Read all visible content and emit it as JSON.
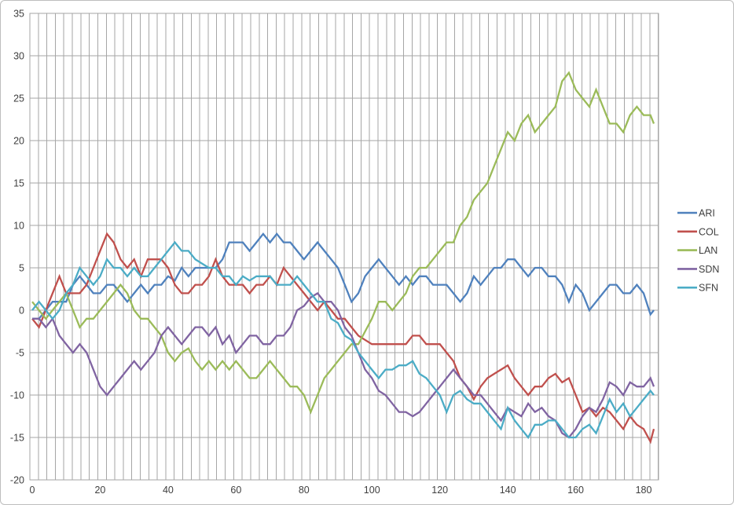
{
  "chart_data": {
    "type": "line",
    "title": "",
    "xlabel": "",
    "ylabel": "",
    "xlim": [
      0,
      184
    ],
    "ylim": [
      -20,
      35
    ],
    "xticks": [
      0,
      20,
      40,
      60,
      80,
      100,
      120,
      140,
      160,
      180
    ],
    "yticks": [
      35,
      30,
      25,
      20,
      15,
      10,
      5,
      0,
      -5,
      -10,
      -15,
      -20
    ],
    "grid": "on",
    "x_gridline_step": 2.5,
    "y_gridline_step": 5,
    "legend_position": "right",
    "axis_color": "#a6a6a6",
    "label_color": "#3f3f3f",
    "x": [
      0,
      2,
      4,
      6,
      8,
      10,
      12,
      14,
      16,
      18,
      20,
      22,
      24,
      26,
      28,
      30,
      32,
      34,
      36,
      38,
      40,
      42,
      44,
      46,
      48,
      50,
      52,
      54,
      56,
      58,
      60,
      62,
      64,
      66,
      68,
      70,
      72,
      74,
      76,
      78,
      80,
      82,
      84,
      86,
      88,
      90,
      92,
      94,
      96,
      98,
      100,
      102,
      104,
      106,
      108,
      110,
      112,
      114,
      116,
      118,
      120,
      122,
      124,
      126,
      128,
      130,
      132,
      134,
      136,
      138,
      140,
      142,
      144,
      146,
      148,
      150,
      152,
      154,
      156,
      158,
      160,
      162,
      164,
      166,
      168,
      170,
      172,
      174,
      176,
      178,
      180,
      182,
      183
    ],
    "series": [
      {
        "name": "ARI",
        "color": "#4F81BD",
        "values": [
          -1,
          -1,
          0,
          1,
          1,
          1,
          3,
          4,
          3,
          2,
          2,
          3,
          3,
          2,
          1,
          2,
          3,
          2,
          3,
          3,
          4,
          3.5,
          5,
          4,
          5,
          5,
          5,
          5,
          6,
          8,
          8,
          8,
          7,
          8,
          9,
          8,
          9,
          8,
          8,
          7,
          6,
          7,
          8,
          7,
          6,
          5,
          3,
          1,
          2,
          4,
          5,
          6,
          5,
          4,
          3,
          4,
          3,
          4,
          4,
          3,
          3,
          3,
          2,
          1,
          2,
          4,
          3,
          4,
          5,
          5,
          6,
          6,
          5,
          4,
          5,
          5,
          4,
          4,
          3,
          1,
          3,
          2,
          0,
          1,
          2,
          3,
          3,
          2,
          2,
          3,
          2,
          -0.5,
          0
        ]
      },
      {
        "name": "COL",
        "color": "#C0504D",
        "values": [
          -1,
          -2,
          0,
          2,
          4,
          2,
          2,
          2,
          3,
          5,
          7,
          9,
          8,
          6,
          5,
          6,
          4,
          6,
          6,
          6,
          5,
          3,
          2,
          2,
          3,
          3,
          4,
          6,
          4,
          3,
          3,
          3,
          2,
          3,
          3,
          4,
          3,
          5,
          4,
          3,
          2,
          1,
          0,
          1,
          0,
          -1,
          -1,
          -2,
          -3,
          -3.5,
          -4,
          -4,
          -4,
          -4,
          -4,
          -4,
          -3,
          -3,
          -4,
          -4,
          -4,
          -5,
          -6,
          -8,
          -9,
          -10.5,
          -9,
          -8,
          -7.5,
          -7,
          -6.5,
          -8,
          -9,
          -10,
          -9,
          -9,
          -8,
          -7.5,
          -8.5,
          -8,
          -10,
          -12,
          -11.5,
          -12.5,
          -11.5,
          -12,
          -13,
          -14,
          -12.5,
          -13.5,
          -14,
          -15.5,
          -14
        ]
      },
      {
        "name": "LAN",
        "color": "#9BBB59",
        "values": [
          1,
          0,
          -1,
          0,
          1,
          2,
          0,
          -2,
          -1,
          -1,
          0,
          1,
          2,
          3,
          2,
          0,
          -1,
          -1,
          -2,
          -3,
          -5,
          -6,
          -5,
          -4.5,
          -6,
          -7,
          -6,
          -7,
          -6,
          -7,
          -6,
          -7,
          -8,
          -8,
          -7,
          -6,
          -7,
          -8,
          -9,
          -9,
          -10,
          -12,
          -10,
          -8,
          -7,
          -6,
          -5,
          -4,
          -4,
          -2.5,
          -1,
          1,
          1,
          0,
          1,
          2,
          4,
          5,
          5,
          6,
          7,
          8,
          8,
          10,
          11,
          13,
          14,
          15,
          17,
          19,
          21,
          20,
          22,
          23,
          21,
          22,
          23,
          24,
          27,
          28,
          26,
          25,
          24,
          26,
          24,
          22,
          22,
          21,
          23,
          24,
          23,
          23,
          22
        ]
      },
      {
        "name": "SDN",
        "color": "#8064A2",
        "values": [
          -1,
          -1,
          -2,
          -1,
          -3,
          -4,
          -5,
          -4,
          -5,
          -7,
          -9,
          -10,
          -9,
          -8,
          -7,
          -6,
          -7,
          -6,
          -5,
          -3,
          -2,
          -3,
          -4,
          -3,
          -2,
          -2,
          -3,
          -2,
          -4,
          -3,
          -5,
          -4,
          -3,
          -3,
          -4,
          -4,
          -3,
          -3,
          -2,
          0,
          0.5,
          1.5,
          2,
          1,
          1,
          0,
          -2,
          -3,
          -5,
          -7,
          -8,
          -9.5,
          -10,
          -11,
          -12,
          -12,
          -12.5,
          -12,
          -11,
          -10,
          -9,
          -8,
          -7,
          -8,
          -9,
          -10,
          -10,
          -11,
          -12,
          -13,
          -11.5,
          -12,
          -12.5,
          -11,
          -12,
          -11.5,
          -12.5,
          -13,
          -14.5,
          -15,
          -14,
          -12.5,
          -11.5,
          -12,
          -10.5,
          -8.5,
          -9,
          -10,
          -8.5,
          -9,
          -9,
          -8,
          -9
        ]
      },
      {
        "name": "SFN",
        "color": "#4BACC6",
        "values": [
          0,
          1,
          0,
          -1,
          0,
          2,
          3,
          5,
          4,
          3,
          4,
          6,
          5,
          5,
          4,
          5,
          4,
          4,
          5,
          6,
          7,
          8,
          7,
          7,
          6,
          5.5,
          5,
          5,
          4,
          4,
          3,
          4,
          3.5,
          4,
          4,
          4,
          3,
          3,
          3,
          4,
          3,
          2,
          1,
          1,
          -1,
          -1.5,
          -3,
          -3.5,
          -5,
          -6,
          -7,
          -8,
          -7,
          -7,
          -6.5,
          -6.5,
          -6,
          -7.5,
          -8,
          -9,
          -10,
          -12,
          -10,
          -9.5,
          -10.5,
          -11,
          -11,
          -12,
          -13,
          -14,
          -11.5,
          -13,
          -14,
          -15,
          -13.5,
          -13.5,
          -13,
          -13,
          -14,
          -15,
          -15,
          -14,
          -13.5,
          -14.5,
          -12.5,
          -10.5,
          -12,
          -11,
          -12.5,
          -11.5,
          -10.5,
          -9.5,
          -10
        ]
      }
    ]
  },
  "legend": {
    "items": [
      {
        "label": "ARI",
        "color": "#4F81BD"
      },
      {
        "label": "COL",
        "color": "#C0504D"
      },
      {
        "label": "LAN",
        "color": "#9BBB59"
      },
      {
        "label": "SDN",
        "color": "#8064A2"
      },
      {
        "label": "SFN",
        "color": "#4BACC6"
      }
    ]
  },
  "colors": {
    "background": "#ffffff",
    "gridline": "#a6a6a6",
    "plot_border": "#a6a6a6",
    "outer_border": "#bdbdbd",
    "text": "#3f3f3f"
  }
}
